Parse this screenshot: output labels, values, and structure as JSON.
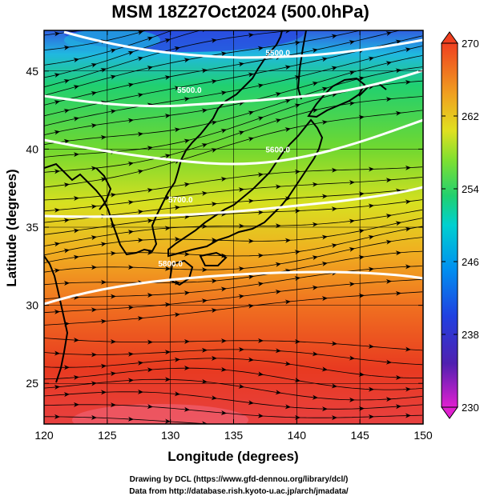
{
  "title": "MSM 18Z27Oct2024 (500.0hPa)",
  "map": {
    "xlabel": "Longitude (degrees)",
    "ylabel": "Latitude  (degrees)",
    "lon_ticks": [
      "120",
      "125",
      "130",
      "135",
      "140",
      "145",
      "150"
    ],
    "lat_ticks": [
      "25",
      "30",
      "35",
      "40",
      "45"
    ],
    "contour_labels": [
      {
        "text": "5500.0",
        "lon": 138.5,
        "lat": 46.2
      },
      {
        "text": "5500.0",
        "lon": 131.5,
        "lat": 43.8
      },
      {
        "text": "5600.0",
        "lon": 138.5,
        "lat": 40.0
      },
      {
        "text": "5700.0",
        "lon": 130.8,
        "lat": 36.8
      },
      {
        "text": "5800.0",
        "lon": 130.0,
        "lat": 32.7
      }
    ],
    "field_colors": [
      "#2040d0",
      "#00c0e0",
      "#20d060",
      "#a0e020",
      "#f0d020",
      "#f09020",
      "#e84020",
      "#f06080"
    ]
  },
  "colorbar": {
    "ticks": [
      "270",
      "262",
      "254",
      "246",
      "238",
      "230"
    ],
    "colors": [
      "#f04020",
      "#f08020",
      "#f0c020",
      "#c0e030",
      "#40d040",
      "#00d0a0",
      "#00c8e8",
      "#0080f0",
      "#2030d0",
      "#6020c0",
      "#c020c0",
      "#f040f0"
    ]
  },
  "credits": {
    "line1": "Drawing by DCL (https://www.gfd-dennou.org/library/dcl/)",
    "line2": "Data from http://database.rish.kyoto-u.ac.jp/arch/jmadata/"
  }
}
